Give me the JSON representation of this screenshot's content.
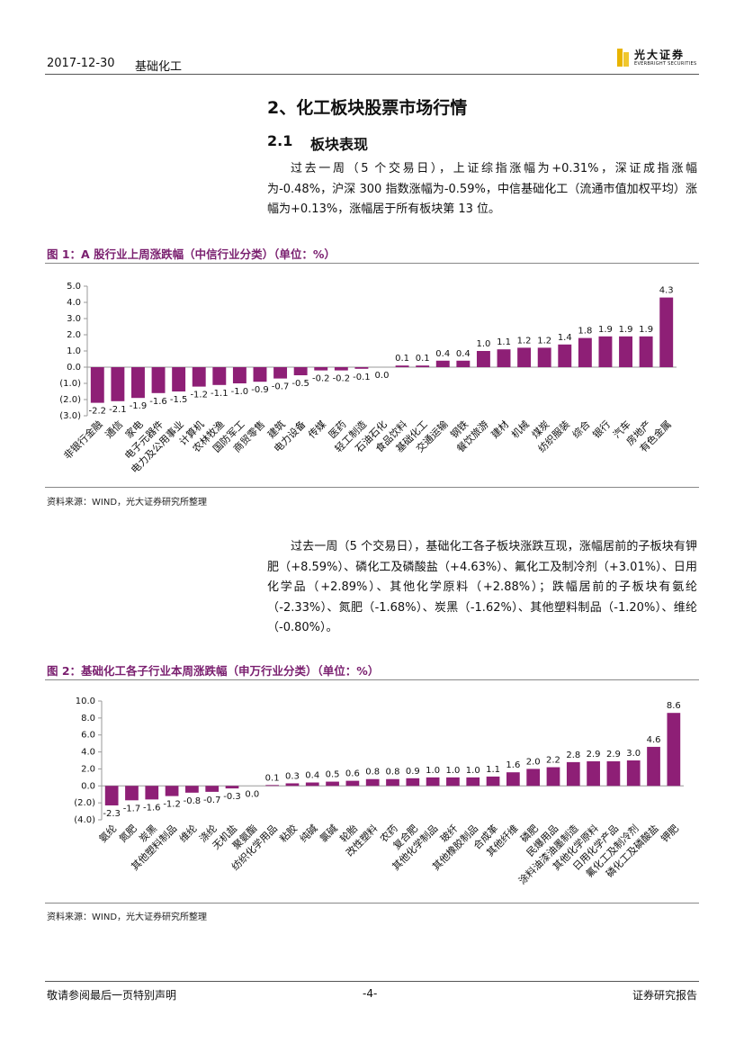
{
  "header": {
    "date": "2017-12-30",
    "sector": "基础化工",
    "logo_cn": "光大证券",
    "logo_en": "EVERBRIGHT SECURITIES"
  },
  "heading": "2、化工板块股票市场行情",
  "subheading_number": "2.1",
  "subheading": "板块表现",
  "paragraphs": [
    "过去一周（5 个交易日），上证综指涨幅为+0.31%，深证成指涨幅为-0.48%，沪深 300 指数涨幅为-0.59%，中信基础化工（流通市值加权平均）涨幅为+0.13%，涨幅居于所有板块第 13 位。",
    "过去一周（5 个交易日），基础化工各子板块涨跌互现，涨幅居前的子板块有钾肥（+8.59%）、磷化工及磷酸盐（+4.63%）、氟化工及制冷剂（+3.01%）、日用化学品（+2.89%）、其他化学原料（+2.88%）；跌幅居前的子板块有氨纶（-2.33%）、氮肥（-1.68%）、炭黑（-1.62%）、其他塑料制品（-1.20%）、维纶（-0.80%）。"
  ],
  "chart_data": [
    {
      "type": "bar",
      "title": "图 1：A 股行业上周涨跌幅（中信行业分类）（单位：%）",
      "source": "资料来源：WIND，光大证券研究所整理",
      "categories": [
        "非银行金融",
        "通信",
        "家电",
        "电子元器件",
        "电力及公用事业",
        "计算机",
        "农林牧渔",
        "国防军工",
        "商贸零售",
        "建筑",
        "电力设备",
        "传媒",
        "医药",
        "轻工制造",
        "石油石化",
        "食品饮料",
        "基础化工",
        "交通运输",
        "钢铁",
        "餐饮旅游",
        "建材",
        "机械",
        "煤炭",
        "纺织服装",
        "综合",
        "银行",
        "汽车",
        "房地产",
        "有色金属"
      ],
      "values": [
        -2.2,
        -2.1,
        -1.9,
        -1.6,
        -1.5,
        -1.2,
        -1.1,
        -1.0,
        -0.9,
        -0.7,
        -0.5,
        -0.2,
        -0.2,
        -0.1,
        0.0,
        0.1,
        0.1,
        0.4,
        0.4,
        1.0,
        1.1,
        1.2,
        1.2,
        1.4,
        1.8,
        1.9,
        1.9,
        1.9,
        4.3
      ],
      "value_labels": [
        "-2.2",
        "-2.1",
        "-1.9",
        "-1.6",
        "-1.5",
        "-1.2",
        "-1.1",
        "-1.0",
        "-0.9",
        "-0.7",
        "-0.5",
        "-0.2",
        "-0.2",
        "-0.1",
        "0.0",
        "0.1",
        "0.1",
        "0.4",
        "0.4",
        "1.0",
        "1.1",
        "1.2",
        "1.2",
        "1.4",
        "1.8",
        "1.9",
        "1.9",
        "1.9",
        "4.3"
      ],
      "color": "#8e1f76",
      "negative_tick_color": "#c00000",
      "ylim": [
        -3,
        5
      ],
      "yticks": [
        {
          "value": 5,
          "label": "5.0"
        },
        {
          "value": 4,
          "label": "4.0"
        },
        {
          "value": 3,
          "label": "3.0"
        },
        {
          "value": 2,
          "label": "2.0"
        },
        {
          "value": 1,
          "label": "1.0"
        },
        {
          "value": 0,
          "label": "0.0"
        },
        {
          "value": -1,
          "label": "(1.0)"
        },
        {
          "value": -2,
          "label": "(2.0)"
        },
        {
          "value": -3,
          "label": "(3.0)"
        }
      ]
    },
    {
      "type": "bar",
      "title": "图 2：基础化工各子行业本周涨跌幅（申万行业分类）（单位：%）",
      "source": "资料来源：WIND，光大证券研究所整理",
      "categories": [
        "氨纶",
        "氮肥",
        "炭黑",
        "其他塑料制品",
        "维纶",
        "涤纶",
        "无机盐",
        "聚氨酯",
        "纺织化学用品",
        "粘胶",
        "纯碱",
        "氯碱",
        "轮胎",
        "改性塑料",
        "农药",
        "复合肥",
        "其他化学制品",
        "玻纤",
        "其他橡胶制品",
        "合成革",
        "其他纤维",
        "磷肥",
        "民爆用品",
        "涂料油漆油墨制造",
        "其他化学原料",
        "日用化学产品",
        "氟化工及制冷剂",
        "磷化工及磷酸盐",
        "钾肥"
      ],
      "values": [
        -2.3,
        -1.7,
        -1.6,
        -1.2,
        -0.8,
        -0.7,
        -0.3,
        0.0,
        0.1,
        0.3,
        0.4,
        0.5,
        0.6,
        0.8,
        0.8,
        0.9,
        1.0,
        1.0,
        1.0,
        1.1,
        1.6,
        2.0,
        2.2,
        2.8,
        2.9,
        2.9,
        3.0,
        4.6,
        8.6
      ],
      "value_labels": [
        "-2.3",
        "-1.7",
        "-1.6",
        "-1.2",
        "-0.8",
        "-0.7",
        "-0.3",
        "0.0",
        "0.1",
        "0.3",
        "0.4",
        "0.5",
        "0.6",
        "0.8",
        "0.8",
        "0.9",
        "1.0",
        "1.0",
        "1.0",
        "1.1",
        "1.6",
        "2.0",
        "2.2",
        "2.8",
        "2.9",
        "2.9",
        "3.0",
        "4.6",
        "8.6"
      ],
      "color": "#8e1f76",
      "negative_tick_color": "#c00000",
      "ylim": [
        -4,
        10
      ],
      "yticks": [
        {
          "value": 10,
          "label": "10.0"
        },
        {
          "value": 8,
          "label": "8.0"
        },
        {
          "value": 6,
          "label": "6.0"
        },
        {
          "value": 4,
          "label": "4.0"
        },
        {
          "value": 2,
          "label": "2.0"
        },
        {
          "value": 0,
          "label": "0.0"
        },
        {
          "value": -2,
          "label": "(2.0)"
        },
        {
          "value": -4,
          "label": "(4.0)"
        }
      ]
    }
  ],
  "footer": {
    "left": "敬请参阅最后一页特别声明",
    "page": "-4-",
    "right": "证券研究报告"
  }
}
